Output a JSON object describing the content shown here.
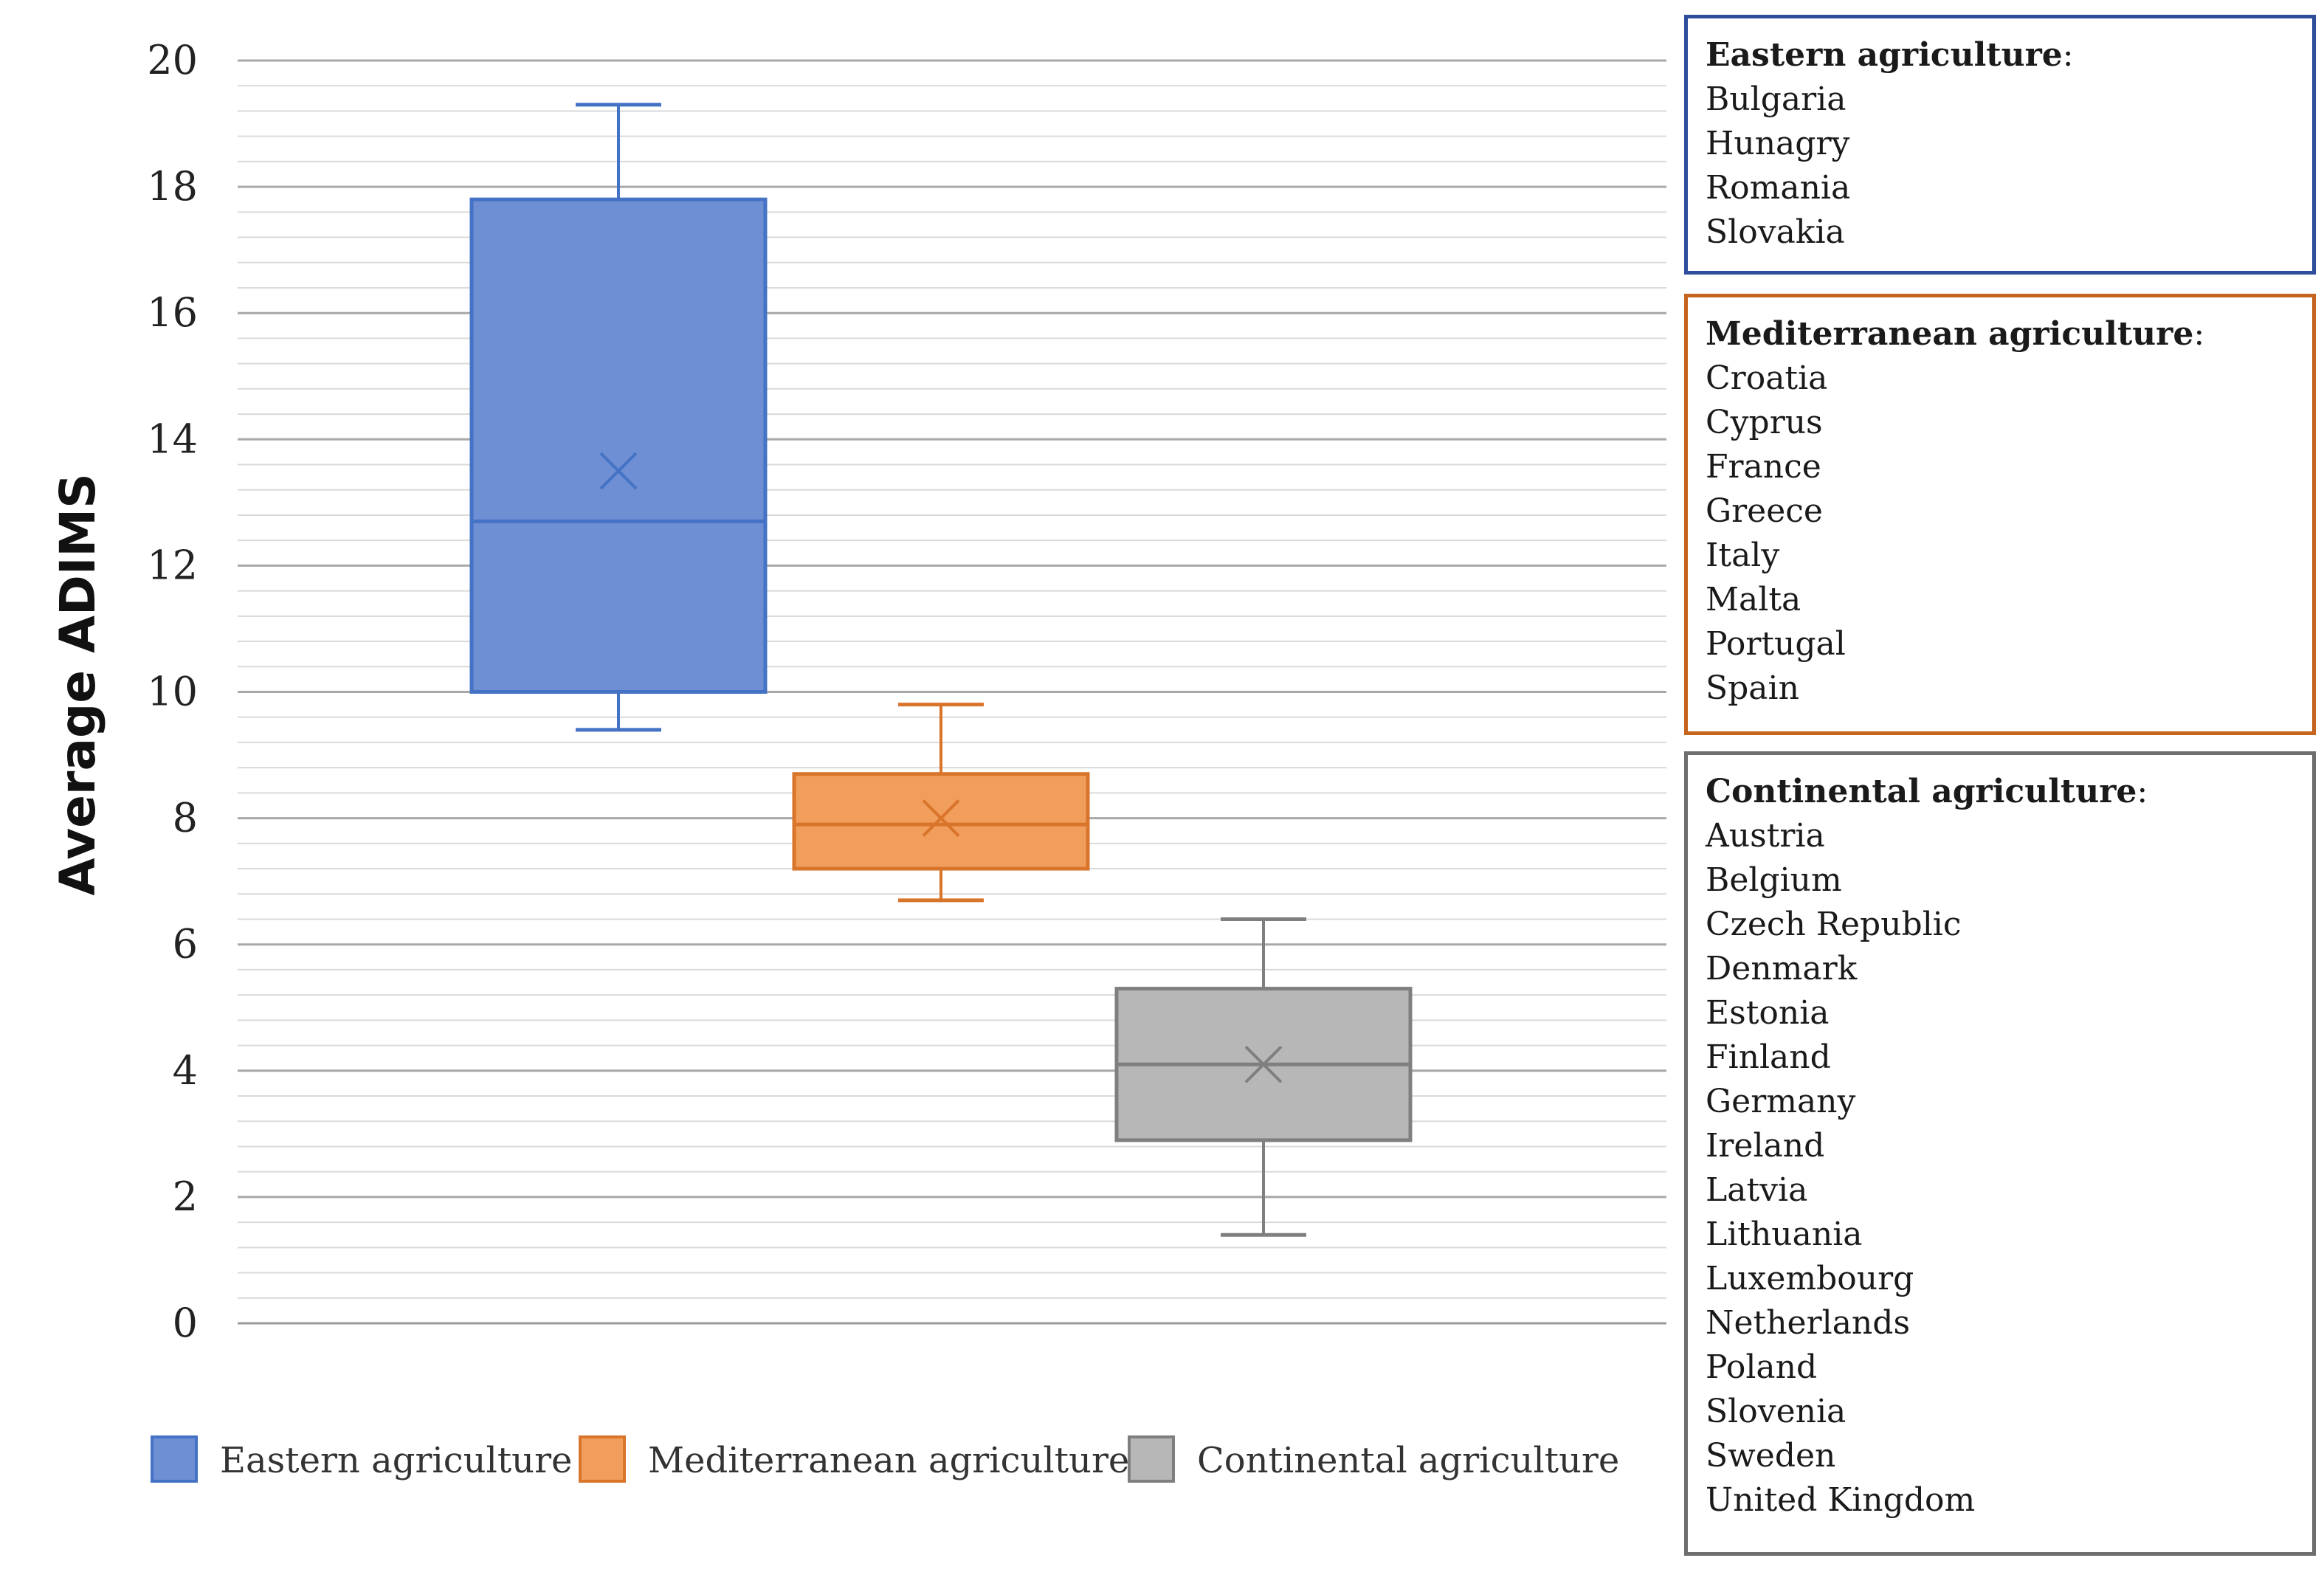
{
  "chart_data": {
    "type": "box",
    "ylabel": "Average ADIMS",
    "ylim": [
      0,
      20
    ],
    "major_ticks": [
      0,
      2,
      4,
      6,
      8,
      10,
      12,
      14,
      16,
      18,
      20
    ],
    "minor_step": 0.4,
    "series": [
      {
        "name": "Eastern agriculture",
        "min": 9.4,
        "q1": 10.0,
        "median": 12.7,
        "q3": 17.8,
        "max": 19.3,
        "mean": 13.5,
        "color": "#4472C4",
        "fill": "#6E8FD4"
      },
      {
        "name": "Mediterranean agriculture",
        "min": 6.7,
        "q1": 7.2,
        "median": 7.9,
        "q3": 8.7,
        "max": 9.8,
        "mean": 8.0,
        "color": "#D9742B",
        "fill": "#F19E5C"
      },
      {
        "name": "Continental agriculture",
        "min": 1.4,
        "q1": 2.9,
        "median": 4.1,
        "q3": 5.3,
        "max": 6.4,
        "mean": 4.1,
        "color": "#7F7F7F",
        "fill": "#B7B7B7"
      }
    ]
  },
  "groups": {
    "eastern": {
      "title": "Eastern agriculture",
      "suffix": ":",
      "color": "#2E4E9C",
      "countries": [
        "Bulgaria",
        "Hunagry",
        "Romania",
        "Slovakia"
      ]
    },
    "mediterranean": {
      "title": "Mediterranean agriculture",
      "suffix": ":",
      "color": "#C5641E",
      "countries": [
        "Croatia",
        "Cyprus",
        "France",
        "Greece",
        "Italy",
        "Malta",
        "Portugal",
        "Spain"
      ]
    },
    "continental": {
      "title": "Continental agriculture",
      "suffix": ":",
      "color": "#6E6E6E",
      "countries": [
        "Austria",
        "Belgium",
        "Czech Republic",
        "Denmark",
        "Estonia",
        "Finland",
        "Germany",
        "Ireland",
        "Latvia",
        "Lithuania",
        "Luxembourg",
        "Netherlands",
        "Poland",
        "Slovenia",
        "Sweden",
        "United Kingdom"
      ]
    }
  }
}
